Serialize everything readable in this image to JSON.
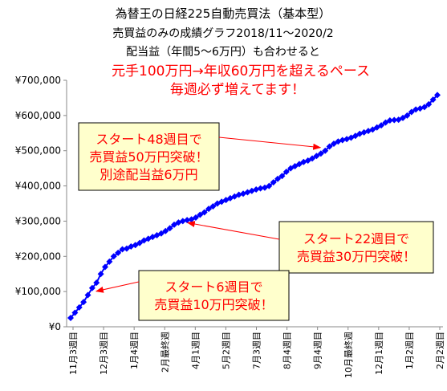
{
  "chart_data": {
    "type": "line",
    "titles": [
      "為替王の日経225自動売買法（基本型）",
      "売買益のみの成績グラフ2018/11～2020/2",
      "配当益（年間5～6万円）も合わせると",
      "元手100万円→年収60万円を超えるペース",
      "毎週必ず増えてます！"
    ],
    "title_colors": [
      "#000000",
      "#000000",
      "#000000",
      "#ff0000",
      "#ff0000"
    ],
    "y_tick_labels": [
      "¥0",
      "¥100,000",
      "¥200,000",
      "¥300,000",
      "¥400,000",
      "¥500,000",
      "¥600,000",
      "¥700,000"
    ],
    "ylim": [
      0,
      700000
    ],
    "x_tick_labels": [
      "11月3週目",
      "12月3週目",
      "1月4週目",
      "2月最終週",
      "4月1週目",
      "5月2週目",
      "7月3週目",
      "8月4週目",
      "9月4週目",
      "10月最終週",
      "12月1週目",
      "1月2週目",
      "2月2週目"
    ],
    "line_color": "#0000ff",
    "series": [
      {
        "values": [
          25000,
          40000,
          55000,
          70000,
          90000,
          110000,
          125000,
          150000,
          170000,
          185000,
          200000,
          210000,
          220000,
          222000,
          228000,
          232000,
          238000,
          245000,
          250000,
          255000,
          260000,
          265000,
          272000,
          280000,
          290000,
          296000,
          300000,
          303000,
          305000,
          310000,
          318000,
          325000,
          335000,
          342000,
          350000,
          355000,
          360000,
          365000,
          370000,
          375000,
          378000,
          382000,
          386000,
          390000,
          393000,
          395000,
          400000,
          410000,
          420000,
          428000,
          440000,
          450000,
          456000,
          462000,
          468000,
          472000,
          478000,
          485000,
          492000,
          500000,
          512000,
          520000,
          526000,
          530000,
          533000,
          537000,
          542000,
          548000,
          552000,
          556000,
          560000,
          566000,
          572000,
          580000,
          586000,
          587000,
          588000,
          593000,
          600000,
          610000,
          617000,
          620000,
          624000,
          632000,
          645000,
          658000
        ]
      }
    ],
    "annotations": [
      {
        "lines": [
          "スタート48週目で",
          "売買益50万円突破！",
          "別途配当益6万円"
        ],
        "point_index": 59
      },
      {
        "lines": [
          "スタート22週目で",
          "売買益30万円突破！"
        ],
        "point_index": 26
      },
      {
        "lines": [
          "スタート6週目で",
          "売買益10万円突破！"
        ],
        "point_index": 5
      }
    ],
    "annotation_colors": {
      "text": "#ff0000",
      "box_fill": "#ffffcc",
      "box_border": "#000000",
      "arrow": "#ff0000"
    }
  }
}
